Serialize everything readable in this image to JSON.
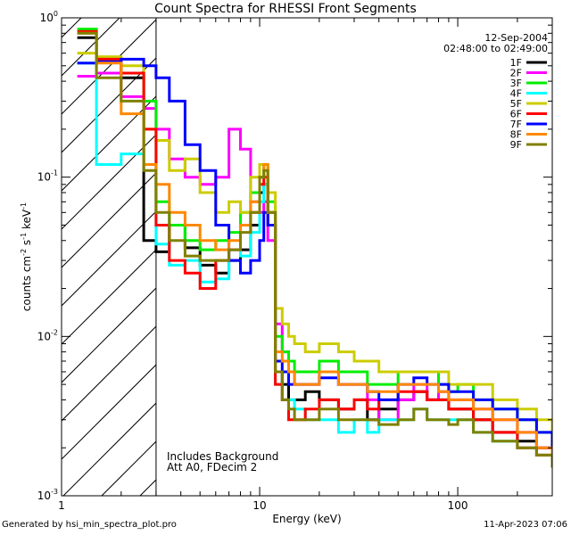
{
  "chart_data": {
    "type": "line",
    "title": "Count Spectra for RHESSI Front Segments",
    "xlabel": "Energy (keV)",
    "ylabel_parts": [
      "counts cm",
      "-2",
      " s",
      "-1",
      " keV",
      "-1"
    ],
    "x_scale": "log",
    "y_scale": "log",
    "xlim": [
      1,
      300
    ],
    "ylim": [
      0.001,
      1
    ],
    "x_ticks": [
      {
        "value": 1,
        "label": "1"
      },
      {
        "value": 10,
        "label": "10"
      },
      {
        "value": 100,
        "label": "100"
      }
    ],
    "y_ticks": [
      {
        "value": 1,
        "label": "10",
        "exp": "0"
      },
      {
        "value": 0.1,
        "label": "10",
        "exp": "-1"
      },
      {
        "value": 0.01,
        "label": "10",
        "exp": "-2"
      },
      {
        "value": 0.001,
        "label": "10",
        "exp": "-3"
      }
    ],
    "date": "12-Sep-2004",
    "time_range": "02:48:00 to 02:49:00",
    "annotations": [
      "Includes Background",
      "Att A0, FDecim 2"
    ],
    "shaded_region": {
      "x_from": 1,
      "x_to": 3,
      "style": "diagonal hatch"
    },
    "series": [
      {
        "name": "1F",
        "color": "#000000",
        "x": [
          1.2,
          1.5,
          2.0,
          2.6,
          3.0,
          3.5,
          4.2,
          5,
          6,
          7,
          8,
          9,
          10,
          10.5,
          11,
          12,
          13,
          14,
          15,
          17,
          20,
          25,
          30,
          35,
          40,
          50,
          60,
          70,
          80,
          90,
          100,
          120,
          150,
          200,
          250,
          300
        ],
        "y": [
          0.75,
          0.55,
          0.42,
          0.04,
          0.034,
          0.05,
          0.036,
          0.028,
          0.025,
          0.03,
          0.035,
          0.05,
          0.08,
          0.09,
          0.06,
          0.006,
          0.005,
          0.004,
          0.004,
          0.0045,
          0.004,
          0.0035,
          0.004,
          0.003,
          0.0035,
          0.004,
          0.0045,
          0.004,
          0.004,
          0.0035,
          0.0035,
          0.003,
          0.0025,
          0.0022,
          0.002,
          0.0018
        ]
      },
      {
        "name": "2F",
        "color": "#ff00ff",
        "x": [
          1.2,
          1.5,
          2.0,
          2.6,
          3.0,
          3.5,
          4.2,
          5,
          6,
          7,
          8,
          9,
          10,
          10.5,
          11,
          12,
          13,
          14,
          15,
          17,
          20,
          25,
          30,
          35,
          40,
          50,
          60,
          70,
          80,
          90,
          100,
          120,
          150,
          200,
          250,
          300
        ],
        "y": [
          0.43,
          0.45,
          0.32,
          0.27,
          0.2,
          0.13,
          0.1,
          0.09,
          0.1,
          0.2,
          0.15,
          0.07,
          0.06,
          0.07,
          0.04,
          0.012,
          0.008,
          0.006,
          0.005,
          0.005,
          0.006,
          0.005,
          0.005,
          0.004,
          0.003,
          0.004,
          0.005,
          0.004,
          0.0045,
          0.004,
          0.004,
          0.0035,
          0.003,
          0.0025,
          0.002,
          0.0015
        ]
      },
      {
        "name": "3F",
        "color": "#00ee00",
        "x": [
          1.2,
          1.5,
          2.0,
          2.6,
          3.0,
          3.5,
          4.2,
          5,
          6,
          7,
          8,
          9,
          10,
          10.5,
          11,
          12,
          13,
          14,
          15,
          17,
          20,
          25,
          30,
          35,
          40,
          50,
          60,
          70,
          80,
          90,
          100,
          120,
          150,
          200,
          250,
          300
        ],
        "y": [
          0.85,
          0.55,
          0.45,
          0.3,
          0.07,
          0.05,
          0.04,
          0.035,
          0.04,
          0.045,
          0.06,
          0.08,
          0.1,
          0.12,
          0.07,
          0.01,
          0.008,
          0.007,
          0.006,
          0.006,
          0.007,
          0.006,
          0.006,
          0.005,
          0.005,
          0.006,
          0.006,
          0.006,
          0.005,
          0.0045,
          0.005,
          0.004,
          0.0035,
          0.003,
          0.0025,
          0.002
        ]
      },
      {
        "name": "4F",
        "color": "#00ffff",
        "x": [
          1.2,
          1.5,
          2.0,
          2.6,
          3.0,
          3.5,
          4.2,
          5,
          6,
          7,
          8,
          9,
          10,
          10.5,
          11,
          12,
          13,
          14,
          15,
          17,
          20,
          25,
          30,
          35,
          40,
          50,
          60,
          70,
          80,
          90,
          100,
          120,
          150,
          200,
          250,
          300
        ],
        "y": [
          0.52,
          0.12,
          0.14,
          0.12,
          0.038,
          0.028,
          0.03,
          0.022,
          0.023,
          0.035,
          0.032,
          0.045,
          0.07,
          0.09,
          0.05,
          0.005,
          0.004,
          0.004,
          0.0035,
          0.003,
          0.003,
          0.0025,
          0.003,
          0.0025,
          0.003,
          0.003,
          0.0035,
          0.003,
          0.003,
          0.003,
          0.003,
          0.0025,
          0.0022,
          0.002,
          0.0018,
          0.0017
        ]
      },
      {
        "name": "5F",
        "color": "#cccc00",
        "x": [
          1.2,
          1.5,
          2.0,
          2.6,
          3.0,
          3.5,
          4.2,
          5,
          6,
          7,
          8,
          9,
          10,
          10.5,
          11,
          12,
          13,
          14,
          15,
          17,
          20,
          25,
          30,
          35,
          40,
          50,
          60,
          70,
          80,
          90,
          100,
          120,
          150,
          200,
          250,
          300
        ],
        "y": [
          0.6,
          0.57,
          0.5,
          0.2,
          0.17,
          0.11,
          0.13,
          0.08,
          0.06,
          0.07,
          0.06,
          0.1,
          0.12,
          0.12,
          0.08,
          0.015,
          0.012,
          0.01,
          0.009,
          0.008,
          0.009,
          0.008,
          0.007,
          0.007,
          0.006,
          0.006,
          0.006,
          0.006,
          0.006,
          0.005,
          0.005,
          0.005,
          0.004,
          0.0035,
          0.003,
          0.0025
        ]
      },
      {
        "name": "6F",
        "color": "#ff0000",
        "x": [
          1.2,
          1.5,
          2.0,
          2.6,
          3.0,
          3.5,
          4.2,
          5,
          6,
          7,
          8,
          9,
          10,
          10.5,
          11,
          12,
          13,
          14,
          15,
          17,
          20,
          25,
          30,
          35,
          40,
          50,
          60,
          70,
          80,
          90,
          100,
          120,
          150,
          200,
          250,
          300
        ],
        "y": [
          0.82,
          0.55,
          0.45,
          0.2,
          0.05,
          0.03,
          0.025,
          0.02,
          0.03,
          0.035,
          0.05,
          0.06,
          0.09,
          0.1,
          0.05,
          0.005,
          0.004,
          0.003,
          0.003,
          0.0035,
          0.004,
          0.0035,
          0.004,
          0.0035,
          0.004,
          0.0045,
          0.0045,
          0.004,
          0.004,
          0.0035,
          0.0035,
          0.003,
          0.0025,
          0.002,
          0.0018,
          0.0015
        ]
      },
      {
        "name": "7F",
        "color": "#0000ff",
        "x": [
          1.2,
          1.5,
          2.0,
          2.6,
          3.0,
          3.5,
          4.2,
          5,
          6,
          7,
          8,
          9,
          10,
          10.5,
          11,
          12,
          13,
          14,
          15,
          17,
          20,
          25,
          30,
          35,
          40,
          50,
          60,
          70,
          80,
          90,
          100,
          120,
          150,
          200,
          250,
          300
        ],
        "y": [
          0.52,
          0.53,
          0.55,
          0.5,
          0.42,
          0.3,
          0.16,
          0.11,
          0.05,
          0.03,
          0.025,
          0.03,
          0.04,
          0.06,
          0.05,
          0.007,
          0.006,
          0.005,
          0.005,
          0.005,
          0.0055,
          0.005,
          0.005,
          0.0045,
          0.004,
          0.005,
          0.0055,
          0.005,
          0.005,
          0.0045,
          0.0045,
          0.004,
          0.0035,
          0.003,
          0.0025,
          0.002
        ]
      },
      {
        "name": "8F",
        "color": "#ff8800",
        "x": [
          1.2,
          1.5,
          2.0,
          2.6,
          3.0,
          3.5,
          4.2,
          5,
          6,
          7,
          8,
          9,
          10,
          10.5,
          11,
          12,
          13,
          14,
          15,
          17,
          20,
          25,
          30,
          35,
          40,
          50,
          60,
          70,
          80,
          90,
          100,
          120,
          150,
          200,
          250,
          300
        ],
        "y": [
          0.8,
          0.52,
          0.25,
          0.12,
          0.09,
          0.06,
          0.05,
          0.04,
          0.035,
          0.04,
          0.05,
          0.07,
          0.1,
          0.12,
          0.06,
          0.008,
          0.007,
          0.006,
          0.005,
          0.005,
          0.006,
          0.005,
          0.005,
          0.0045,
          0.0045,
          0.005,
          0.005,
          0.005,
          0.0045,
          0.004,
          0.004,
          0.0035,
          0.003,
          0.0025,
          0.002,
          0.0018
        ]
      },
      {
        "name": "9F",
        "color": "#808000",
        "x": [
          1.2,
          1.5,
          2.0,
          2.6,
          3.0,
          3.5,
          4.2,
          5,
          6,
          7,
          8,
          9,
          10,
          10.5,
          11,
          12,
          13,
          14,
          15,
          17,
          20,
          25,
          30,
          35,
          40,
          50,
          60,
          70,
          80,
          90,
          100,
          120,
          150,
          200,
          250,
          300
        ],
        "y": [
          0.8,
          0.42,
          0.3,
          0.11,
          0.06,
          0.04,
          0.032,
          0.03,
          0.03,
          0.035,
          0.045,
          0.06,
          0.1,
          0.11,
          0.06,
          0.006,
          0.004,
          0.0035,
          0.003,
          0.003,
          0.0035,
          0.003,
          0.003,
          0.003,
          0.0028,
          0.003,
          0.0035,
          0.003,
          0.003,
          0.0028,
          0.003,
          0.0025,
          0.0022,
          0.002,
          0.0018,
          0.0015
        ]
      }
    ]
  },
  "footer": {
    "left": "Generated by hsi_min_spectra_plot.pro",
    "right": "11-Apr-2023 07:06"
  }
}
